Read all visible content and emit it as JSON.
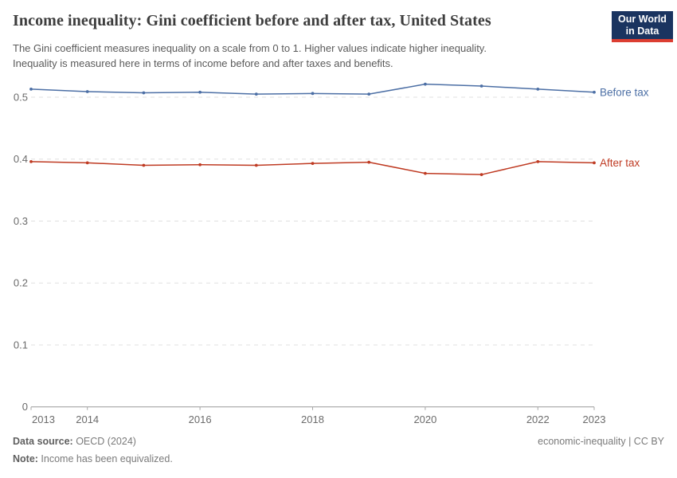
{
  "header": {
    "title": "Income inequality: Gini coefficient before and after tax, United States",
    "subtitle_lines": [
      "The Gini coefficient measures inequality on a scale from 0 to 1. Higher values indicate higher inequality.",
      "Inequality is measured here in terms of income before and after taxes and benefits."
    ],
    "logo": {
      "line1": "Our World",
      "line2": "in Data",
      "bg_color": "#1a3460",
      "accent_color": "#dc3e32"
    }
  },
  "chart_data": {
    "type": "line",
    "title": "Income inequality: Gini coefficient before and after tax, United States",
    "x": [
      2013,
      2014,
      2015,
      2016,
      2017,
      2018,
      2019,
      2020,
      2021,
      2022,
      2023
    ],
    "series": [
      {
        "name": "Before tax",
        "color": "#4c6fa5",
        "values": [
          0.513,
          0.509,
          0.507,
          0.508,
          0.505,
          0.506,
          0.505,
          0.521,
          0.518,
          0.513,
          0.508
        ]
      },
      {
        "name": "After tax",
        "color": "#bf3b23",
        "values": [
          0.396,
          0.394,
          0.39,
          0.391,
          0.39,
          0.393,
          0.395,
          0.377,
          0.375,
          0.396,
          0.394
        ]
      }
    ],
    "xlabel": "",
    "ylabel": "",
    "ylim": [
      0,
      0.55
    ],
    "y_ticks": [
      0,
      0.1,
      0.2,
      0.3,
      0.4,
      0.5
    ],
    "x_tick_labels": [
      2013,
      2014,
      2016,
      2018,
      2020,
      2022,
      2023
    ],
    "grid": "horizontal-dashed",
    "legend_position": "line-end-labels"
  },
  "footer": {
    "source_label": "Data source:",
    "source_value": " OECD (2024)",
    "note_label": "Note:",
    "note_value": " Income has been equivalized.",
    "license": "economic-inequality | CC BY"
  }
}
